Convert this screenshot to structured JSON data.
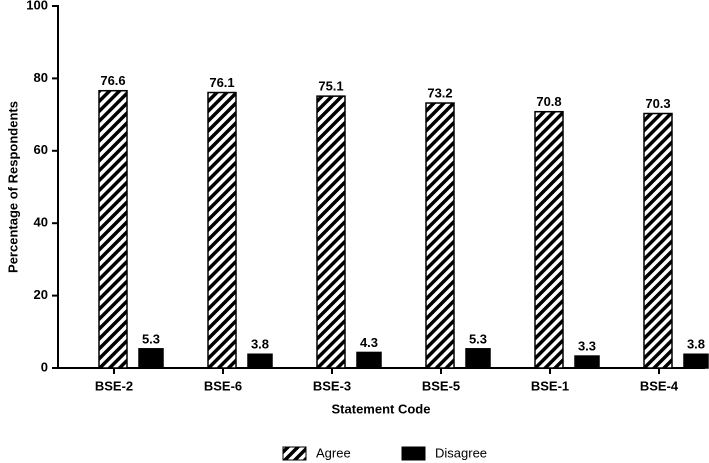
{
  "chart_data": {
    "type": "bar",
    "x_label": "Statement Code",
    "y_label": "Percentage of Respondents",
    "categories": [
      "BSE-2",
      "BSE-6",
      "BSE-3",
      "BSE-5",
      "BSE-1",
      "BSE-4"
    ],
    "series": [
      {
        "name": "Agree",
        "color": "#000000",
        "pattern": "hatch",
        "values": [
          76.6,
          76.1,
          75.1,
          73.2,
          70.8,
          70.3
        ]
      },
      {
        "name": "Disagree",
        "color": "#000000",
        "pattern": "solid",
        "values": [
          5.3,
          3.8,
          4.3,
          5.3,
          3.3,
          3.8
        ]
      }
    ],
    "ylim": [
      0,
      100
    ],
    "yticks": [
      0,
      20,
      40,
      60,
      80,
      100
    ],
    "grid": false,
    "legend": "bottom"
  }
}
